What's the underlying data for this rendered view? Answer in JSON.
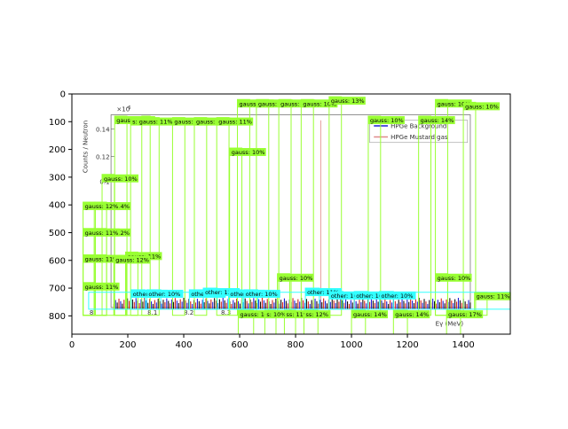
{
  "chart_data": {
    "type": "image",
    "xlim": [
      0,
      1568
    ],
    "ylim": [
      866,
      0
    ],
    "x_ticks": [
      0,
      200,
      400,
      600,
      800,
      1000,
      1200,
      1400
    ],
    "y_ticks": [
      0,
      100,
      200,
      300,
      400,
      500,
      600,
      700,
      800
    ],
    "inner_plot": {
      "ylabel": "Counts / Neutron",
      "scale_label": "×10",
      "scale_exponent": "-6",
      "y_ticks": [
        {
          "label": "0.14",
          "y": 127
        },
        {
          "label": "0.12",
          "y": 225
        },
        {
          "label": "0.1",
          "y": 315
        }
      ],
      "x_ticks": [
        {
          "label": "8",
          "x": 70
        },
        {
          "label": "8.1",
          "x": 288
        },
        {
          "label": "8.2",
          "x": 418
        },
        {
          "label": "8.3",
          "x": 551
        }
      ],
      "xlabel": "Eγ (MeV)",
      "legend": [
        {
          "label": "HPGe Background",
          "color": "#1f1fd6"
        },
        {
          "label": "HPGe Mustard gas",
          "color": "#e08a8a"
        }
      ]
    },
    "annotation_boxes": [
      {
        "label": "gauss: 11%",
        "x0": 153,
        "y0": 80,
        "x1": 197,
        "y1": 798,
        "color": "#99ff33"
      },
      {
        "label": "14%",
        "x0": 250,
        "y0": 80,
        "x1": 280,
        "y1": 798,
        "color": "#99ff33"
      },
      {
        "label": "s: gauss: 11%",
        "x0": 210,
        "y0": 85,
        "x1": 312,
        "y1": 798,
        "color": "#99ff33"
      },
      {
        "label": "gauss: 11%",
        "x0": 360,
        "y0": 85,
        "x1": 404,
        "y1": 798,
        "color": "#99ff33"
      },
      {
        "label": "gauss: 11%",
        "x0": 438,
        "y0": 85,
        "x1": 482,
        "y1": 798,
        "color": "#99ff33"
      },
      {
        "label": "gauss: 11%",
        "x0": 518,
        "y0": 85,
        "x1": 562,
        "y1": 798,
        "color": "#99ff33"
      },
      {
        "label": "gauss: 10%",
        "x0": 564,
        "y0": 195,
        "x1": 608,
        "y1": 798,
        "color": "#99ff33"
      },
      {
        "label": "gauss: 10%",
        "x0": 108,
        "y0": 290,
        "x1": 152,
        "y1": 798,
        "color": "#99ff33"
      },
      {
        "label": "gauss: 14%",
        "x0": 80,
        "y0": 390,
        "x1": 124,
        "y1": 798,
        "color": "#99ff33"
      },
      {
        "label": "gauss: 12%",
        "x0": 40,
        "y0": 390,
        "x1": 84,
        "y1": 798,
        "color": "#99ff33"
      },
      {
        "label": "gauss: 12%",
        "x0": 80,
        "y0": 485,
        "x1": 124,
        "y1": 798,
        "color": "#99ff33"
      },
      {
        "label": "gauss: 11%",
        "x0": 40,
        "y0": 485,
        "x1": 84,
        "y1": 798,
        "color": "#99ff33"
      },
      {
        "label": "gauss: 16%",
        "x0": 80,
        "y0": 580,
        "x1": 124,
        "y1": 798,
        "color": "#99ff33"
      },
      {
        "label": "gauss: 11%",
        "x0": 40,
        "y0": 580,
        "x1": 84,
        "y1": 798,
        "color": "#99ff33"
      },
      {
        "label": "gauss: 11%",
        "x0": 192,
        "y0": 570,
        "x1": 236,
        "y1": 798,
        "color": "#99ff33"
      },
      {
        "label": "gauss: 12%",
        "x0": 150,
        "y0": 583,
        "x1": 194,
        "y1": 798,
        "color": "#99ff33"
      },
      {
        "label": "gauss: 11%",
        "x0": 40,
        "y0": 680,
        "x1": 84,
        "y1": 798,
        "color": "#99ff33"
      },
      {
        "label": "gauss: 10%",
        "x0": 592,
        "y0": 20,
        "x1": 636,
        "y1": 798,
        "color": "#99ff33"
      },
      {
        "label": "gauss: 10%",
        "x0": 660,
        "y0": 20,
        "x1": 704,
        "y1": 798,
        "color": "#99ff33"
      },
      {
        "label": "gauss: 10%",
        "x0": 740,
        "y0": 20,
        "x1": 784,
        "y1": 798,
        "color": "#99ff33"
      },
      {
        "label": "gauss: 10%",
        "x0": 820,
        "y0": 20,
        "x1": 864,
        "y1": 798,
        "color": "#99ff33"
      },
      {
        "label": "gauss: 13%",
        "x0": 920,
        "y0": 10,
        "x1": 964,
        "y1": 798,
        "color": "#99ff33"
      },
      {
        "label": "gauss: 10%",
        "x0": 1060,
        "y0": 80,
        "x1": 1104,
        "y1": 798,
        "color": "#99ff33"
      },
      {
        "label": "gauss: 14%",
        "x0": 1240,
        "y0": 80,
        "x1": 1284,
        "y1": 798,
        "color": "#99ff33"
      },
      {
        "label": "gauss: 10%",
        "x0": 1300,
        "y0": 20,
        "x1": 1344,
        "y1": 798,
        "color": "#99ff33"
      },
      {
        "label": "gauss: 10%",
        "x0": 1400,
        "y0": 30,
        "x1": 1444,
        "y1": 798,
        "color": "#99ff33"
      },
      {
        "label": "gauss: 10%",
        "x0": 735,
        "y0": 648,
        "x1": 779,
        "y1": 798,
        "color": "#99ff33"
      },
      {
        "label": "gauss: 10%",
        "x0": 1300,
        "y0": 648,
        "x1": 1344,
        "y1": 798,
        "color": "#99ff33"
      },
      {
        "label": "gauss: 11%",
        "x0": 1440,
        "y0": 715,
        "x1": 1485,
        "y1": 798,
        "color": "#99ff33"
      },
      {
        "label": "gauss: 10%",
        "x0": 595,
        "y0": 780,
        "x1": 650,
        "y1": 866,
        "color": "#99ff33"
      },
      {
        "label": "s: 10%",
        "x0": 690,
        "y0": 780,
        "x1": 730,
        "y1": 866,
        "color": "#99ff33"
      },
      {
        "label": "ss: 11%",
        "x0": 760,
        "y0": 780,
        "x1": 800,
        "y1": 866,
        "color": "#99ff33"
      },
      {
        "label": "ss: 12%",
        "x0": 830,
        "y0": 780,
        "x1": 880,
        "y1": 866,
        "color": "#99ff33"
      },
      {
        "label": "gauss: 14%",
        "x0": 1000,
        "y0": 780,
        "x1": 1050,
        "y1": 866,
        "color": "#99ff33"
      },
      {
        "label": "gauss: 14%",
        "x0": 1150,
        "y0": 780,
        "x1": 1200,
        "y1": 866,
        "color": "#99ff33"
      },
      {
        "label": "gauss: 17%",
        "x0": 1340,
        "y0": 780,
        "x1": 1390,
        "y1": 866,
        "color": "#99ff33"
      }
    ],
    "other_boxes": [
      {
        "label": "other: 11%",
        "x0": 212,
        "y0": 706,
        "x1": 262,
        "y1": 776,
        "color": "#33ffff"
      },
      {
        "label": "other: 10%",
        "x0": 268,
        "y0": 706,
        "x1": 318,
        "y1": 776,
        "color": "#33ffff"
      },
      {
        "label": "other: 12%",
        "x0": 420,
        "y0": 706,
        "x1": 470,
        "y1": 776,
        "color": "#33ffff"
      },
      {
        "label": "other: 12%",
        "x0": 470,
        "y0": 700,
        "x1": 520,
        "y1": 776,
        "color": "#33ffff"
      },
      {
        "label": "other: 10%",
        "x0": 560,
        "y0": 706,
        "x1": 610,
        "y1": 776,
        "color": "#33ffff"
      },
      {
        "label": "other: 10%",
        "x0": 615,
        "y0": 706,
        "x1": 665,
        "y1": 776,
        "color": "#33ffff"
      },
      {
        "label": "other: 11%",
        "x0": 835,
        "y0": 700,
        "x1": 885,
        "y1": 776,
        "color": "#33ffff"
      },
      {
        "label": "other: 10%",
        "x0": 920,
        "y0": 712,
        "x1": 970,
        "y1": 776,
        "color": "#33ffff"
      },
      {
        "label": "other: 10%",
        "x0": 1010,
        "y0": 712,
        "x1": 1060,
        "y1": 776,
        "color": "#33ffff"
      },
      {
        "label": "other: 10%",
        "x0": 1100,
        "y0": 712,
        "x1": 1150,
        "y1": 776,
        "color": "#33ffff"
      }
    ]
  }
}
